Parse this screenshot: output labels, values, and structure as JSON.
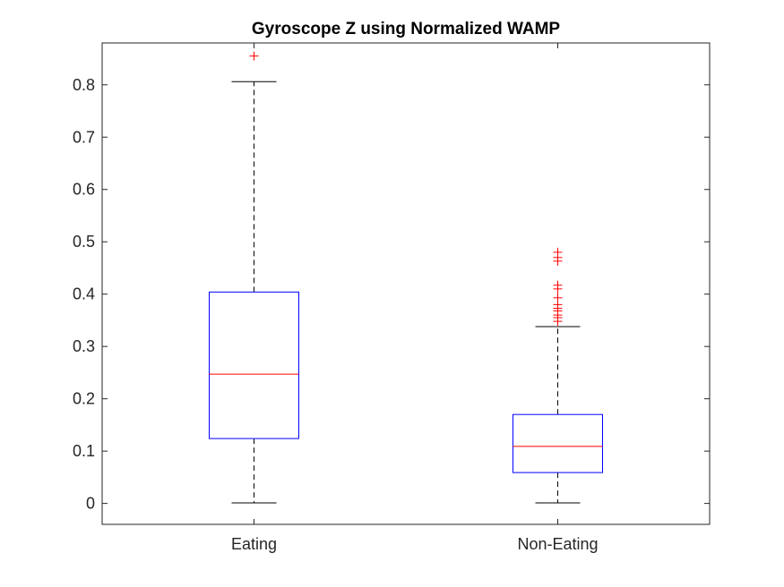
{
  "chart_data": {
    "type": "box",
    "title": "Gyroscope Z using Normalized WAMP",
    "xlabel": "",
    "ylabel": "",
    "categories": [
      "Eating",
      "Non-Eating"
    ],
    "ylim": [
      -0.04,
      0.88
    ],
    "yticks": [
      0,
      0.1,
      0.2,
      0.3,
      0.4,
      0.5,
      0.6,
      0.7,
      0.8
    ],
    "ytick_labels": [
      "0",
      "0.1",
      "0.2",
      "0.3",
      "0.4",
      "0.5",
      "0.6",
      "0.7",
      "0.8"
    ],
    "grid": false,
    "boxes": [
      {
        "category": "Eating",
        "whisker_low": 0.001,
        "q1": 0.124,
        "median": 0.247,
        "q3": 0.404,
        "whisker_high": 0.806,
        "outliers": [
          0.855
        ]
      },
      {
        "category": "Non-Eating",
        "whisker_low": 0.001,
        "q1": 0.059,
        "median": 0.109,
        "q3": 0.17,
        "whisker_high": 0.338,
        "outliers": [
          0.348,
          0.355,
          0.36,
          0.368,
          0.373,
          0.38,
          0.393,
          0.41,
          0.417,
          0.463,
          0.47,
          0.48
        ]
      }
    ],
    "colors": {
      "box": "#0000ff",
      "median": "#ff0000",
      "whisker": "#000000",
      "outlier": "#ff0000",
      "axis": "#262626"
    }
  }
}
